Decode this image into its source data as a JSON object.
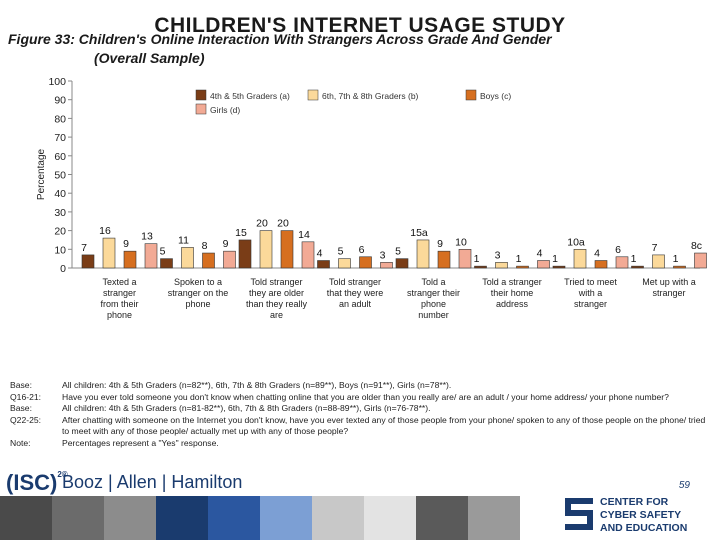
{
  "header": {
    "big_title": "CHILDREN'S INTERNET USAGE STUDY",
    "figure_title": "Figure 33: Children's Online Interaction With Strangers Across Grade And Gender",
    "figure_subtitle": "(Overall Sample)"
  },
  "chart_data": {
    "type": "bar",
    "title": "Figure 33: Children's Online Interaction With Strangers Across Grade And Gender",
    "subtitle": "(Overall Sample)",
    "ylabel": "Percentage",
    "xlabel": "",
    "ylim": [
      0,
      100
    ],
    "yticks": [
      0,
      10,
      20,
      30,
      40,
      50,
      60,
      70,
      80,
      90,
      100
    ],
    "grid": false,
    "legend_position": "top",
    "legend_labels": [
      "4th & 5th Graders (a)",
      "6th, 7th & 8th Graders (b)",
      "Boys (c)",
      "Girls (d)"
    ],
    "categories": [
      "Texted a stranger from their phone",
      "Spoken to a stranger on the phone",
      "Told stranger they are older than they really are",
      "Told stranger that they were an adult",
      "Told a stranger their phone number",
      "Told a stranger their home address",
      "Tried to meet with a stranger",
      "Met up with a stranger"
    ],
    "category_lines": [
      [
        "Texted a",
        "stranger",
        "from their",
        "phone"
      ],
      [
        "Spoken to a",
        "stranger on the",
        "phone"
      ],
      [
        "Told stranger",
        "they are older",
        "than they really",
        "are"
      ],
      [
        "Told stranger",
        "that they were",
        "an adult"
      ],
      [
        "Told a",
        "stranger their",
        "phone",
        "number"
      ],
      [
        "Told a stranger",
        "their home",
        "address"
      ],
      [
        "Tried to meet",
        "with a",
        "stranger"
      ],
      [
        "Met up with a",
        "stranger"
      ]
    ],
    "series": [
      {
        "name": "4th & 5th Graders (a)",
        "color": "#7a3d17",
        "values": [
          7,
          5,
          15,
          4,
          5,
          1,
          1,
          1
        ]
      },
      {
        "name": "6th, 7th & 8th Graders (b)",
        "color": "#fbd99a",
        "values": [
          16,
          11,
          20,
          5,
          15,
          3,
          10,
          7
        ]
      },
      {
        "name": "Boys (c)",
        "color": "#d66f20",
        "values": [
          9,
          8,
          20,
          6,
          9,
          1,
          4,
          1
        ]
      },
      {
        "name": "Girls (d)",
        "color": "#f2aa95",
        "values": [
          13,
          9,
          14,
          3,
          10,
          4,
          6,
          8
        ]
      }
    ],
    "data_labels": [
      [
        "7",
        "16",
        "9",
        "13"
      ],
      [
        "5",
        "11",
        "8",
        "9"
      ],
      [
        "15",
        "20",
        "20",
        "14"
      ],
      [
        "4",
        "5",
        "6",
        "3"
      ],
      [
        "5",
        "15a",
        "9",
        "10"
      ],
      [
        "1",
        "3",
        "1",
        "4"
      ],
      [
        "1",
        "10a",
        "4",
        "6"
      ],
      [
        "1",
        "7",
        "1",
        "8c"
      ]
    ]
  },
  "notes": [
    {
      "label": "Base:",
      "text": "All children: 4th & 5th Graders (n=82**), 6th, 7th & 8th Graders (n=89**), Boys (n=91**), Girls (n=78**)."
    },
    {
      "label": "Q16-21:",
      "text": "Have you ever told someone you don't know when chatting online that you are older than you really are/ are an adult / your home address/ your phone number?"
    },
    {
      "label": "Base:",
      "text": "All children: 4th & 5th Graders (n=81-82**), 6th, 7th & 8th Graders (n=88-89**), Girls (n=76-78**)."
    },
    {
      "label": "Q22-25:",
      "text": "After chatting with someone on the Internet you don't know, have you ever texted any of those people from your phone/ spoken to any of those people on the phone/ tried to meet with any of those people/ actually met up with any of those people?"
    },
    {
      "label": "Note:",
      "text": "Percentages represent a \"Yes\" response."
    }
  ],
  "footer": {
    "isc_logo": "(ISC)",
    "isc_mark": "2®",
    "booz_logo": "Booz | Allen | Hamilton",
    "page_number": "59",
    "center_line1": "CENTER FOR",
    "center_line2": "CYBER SAFETY",
    "center_line3": "AND EDUCATION",
    "strip_colors": [
      "#4a4a4a",
      "#6b6b6b",
      "#8c8c8c",
      "#1a3b6e",
      "#2b57a0",
      "#7c9fd4",
      "#c8c8c8",
      "#e3e3e3",
      "#5a5a5a",
      "#9a9a9a"
    ]
  }
}
